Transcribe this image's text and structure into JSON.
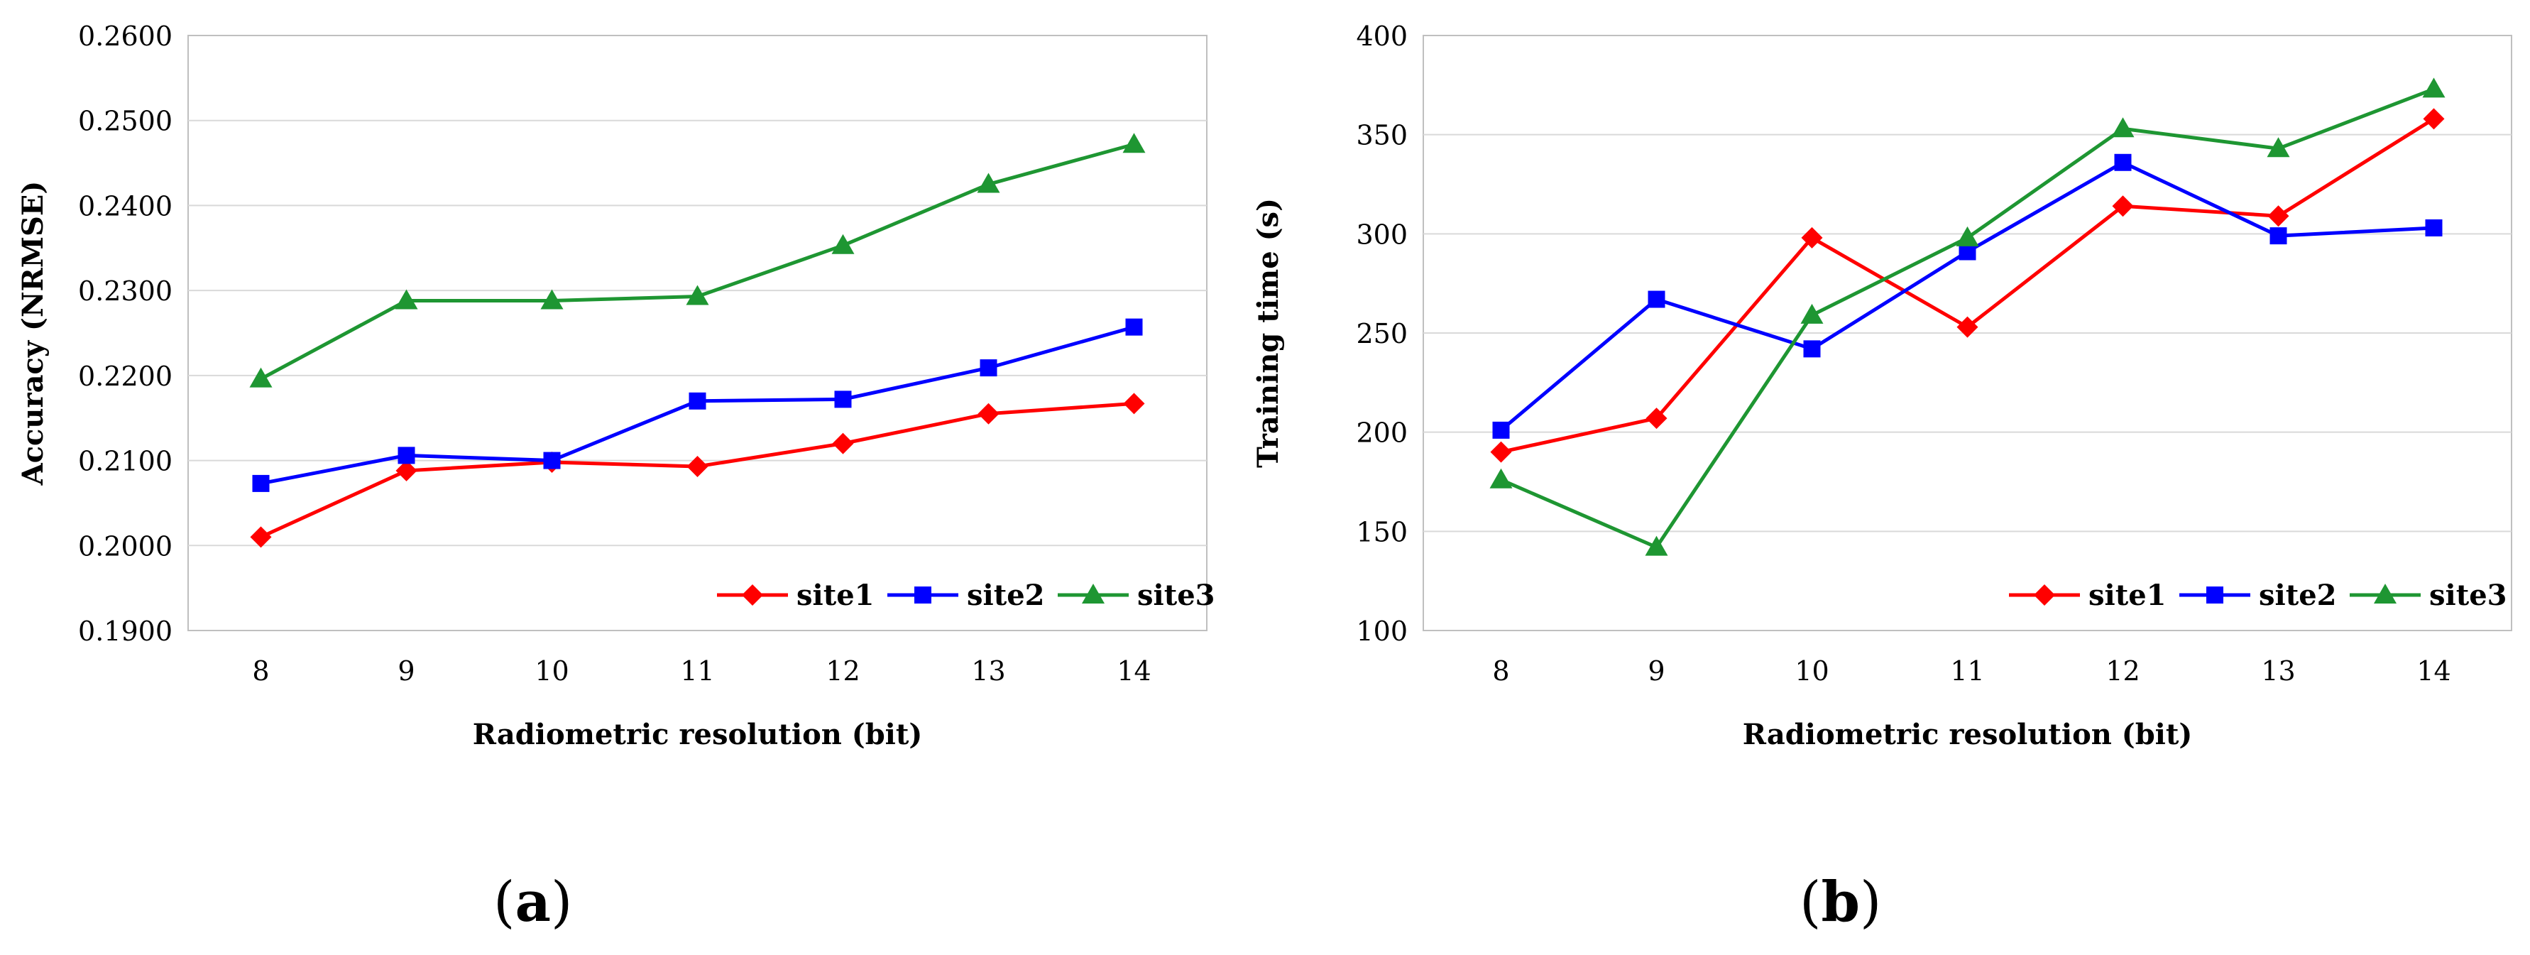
{
  "chart_data": [
    {
      "type": "line",
      "panel": "(a)",
      "categories": [
        "8",
        "9",
        "10",
        "11",
        "12",
        "13",
        "14"
      ],
      "xlabel": "Radiometric resolution (bit)",
      "ylabel": "Accuracy (NRMSE)",
      "ylim": [
        0.19,
        0.26
      ],
      "ytick_step": 0.01,
      "yticks": [
        "0.1900",
        "0.2000",
        "0.2100",
        "0.2200",
        "0.2300",
        "0.2400",
        "0.2500",
        "0.2600"
      ],
      "grid": true,
      "legend_position": "bottom-right",
      "series": [
        {
          "name": "site1",
          "color": "#ff0000",
          "marker": "diamond",
          "values": [
            0.201,
            0.2088,
            0.2098,
            0.2093,
            0.212,
            0.2155,
            0.2167
          ]
        },
        {
          "name": "site2",
          "color": "#0000ff",
          "marker": "square",
          "values": [
            0.2073,
            0.2106,
            0.21,
            0.217,
            0.2172,
            0.2209,
            0.2257
          ]
        },
        {
          "name": "site3",
          "color": "#1e9632",
          "marker": "triangle",
          "values": [
            0.2196,
            0.2288,
            0.2288,
            0.2293,
            0.2353,
            0.2425,
            0.2472
          ]
        }
      ]
    },
    {
      "type": "line",
      "panel": "(b)",
      "categories": [
        "8",
        "9",
        "10",
        "11",
        "12",
        "13",
        "14"
      ],
      "xlabel": "Radiometric resolution (bit)",
      "ylabel": "Training time (s)",
      "ylim": [
        100,
        400
      ],
      "ytick_step": 50,
      "yticks": [
        "100",
        "150",
        "200",
        "250",
        "300",
        "350",
        "400"
      ],
      "grid": true,
      "legend_position": "bottom-right",
      "series": [
        {
          "name": "site1",
          "color": "#ff0000",
          "marker": "diamond",
          "values": [
            190,
            207,
            298,
            253,
            314,
            309,
            358
          ]
        },
        {
          "name": "site2",
          "color": "#0000ff",
          "marker": "square",
          "values": [
            201,
            267,
            242,
            291,
            336,
            299,
            303
          ]
        },
        {
          "name": "site3",
          "color": "#1e9632",
          "marker": "triangle",
          "values": [
            176,
            142,
            259,
            298,
            353,
            343,
            373
          ]
        }
      ]
    }
  ],
  "labels": {
    "a_letter": "a",
    "b_letter": "b"
  }
}
